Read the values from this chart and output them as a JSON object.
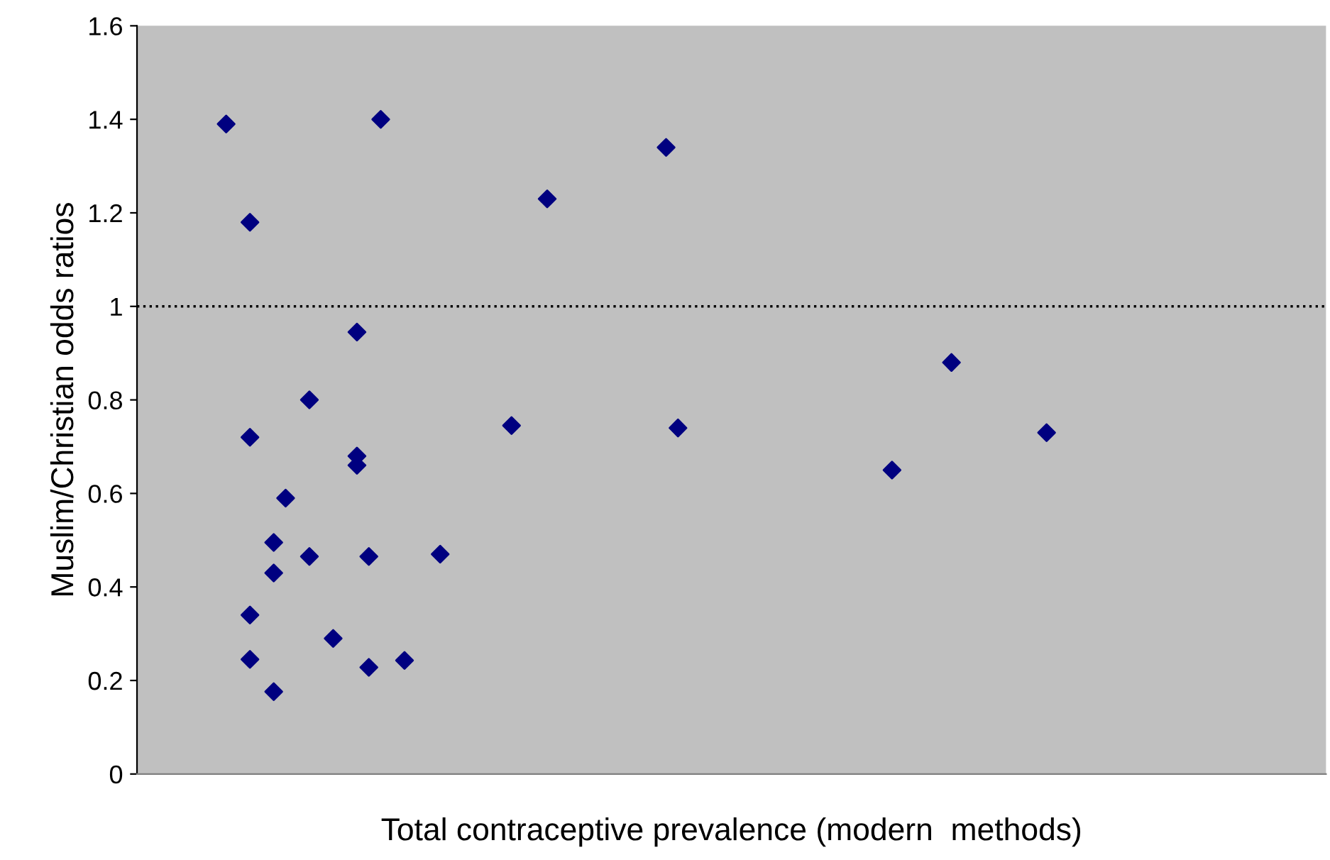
{
  "chart_data": {
    "type": "scatter",
    "xlabel": "Total contraceptive prevalence (modern  methods)",
    "ylabel": "Muslim/Christian odds ratios",
    "categories": [
      null,
      null,
      null,
      null,
      null,
      null,
      null,
      null,
      null,
      null,
      null,
      null,
      null,
      null,
      null,
      null,
      null,
      null,
      null,
      null,
      null,
      null,
      null,
      null,
      null,
      null,
      null,
      null,
      null,
      null,
      null,
      null,
      null,
      null,
      null,
      null,
      null,
      null,
      null,
      null,
      null,
      null,
      null,
      null,
      null,
      null,
      null,
      null,
      null,
      null,
      null,
      null,
      null,
      null,
      null,
      null,
      null,
      null,
      null,
      null,
      null,
      null,
      null,
      null,
      null,
      null,
      null,
      null,
      null,
      null,
      null,
      null,
      null,
      null,
      null,
      null,
      null,
      null,
      null,
      null,
      null,
      null,
      null,
      null,
      null,
      null,
      null,
      null,
      null,
      null,
      null,
      null,
      null,
      null,
      null,
      null,
      null,
      null,
      null,
      null
    ],
    "series": [
      {
        "color": "#000080",
        "values": [
          null,
          null,
          null,
          null,
          null,
          null,
          null,
          1.39,
          null,
          1.18,
          null,
          0.495,
          0.59,
          null,
          0.8,
          null,
          0.29,
          null,
          0.945,
          0.465,
          1.4,
          null,
          0.243,
          null,
          null,
          0.47,
          null,
          null,
          null,
          null,
          null,
          0.745,
          null,
          null,
          1.23,
          null,
          null,
          null,
          null,
          null,
          null,
          null,
          null,
          null,
          1.34,
          0.74,
          null,
          null,
          null,
          null,
          null,
          null,
          null,
          null,
          null,
          null,
          null,
          null,
          null,
          null,
          null,
          null,
          null,
          0.65,
          null,
          null,
          null,
          null,
          0.88,
          null,
          null,
          null,
          null,
          null,
          null,
          null,
          0.73,
          null,
          null,
          null,
          null,
          null,
          null,
          null,
          null,
          null,
          null,
          null,
          null,
          null,
          null,
          null,
          null,
          null,
          null,
          null,
          null,
          null,
          null,
          null
        ]
      },
      {
        "color": "#000080",
        "values": [
          null,
          null,
          null,
          null,
          null,
          null,
          null,
          null,
          null,
          0.72,
          null,
          0.43,
          null,
          null,
          0.465,
          null,
          null,
          null,
          0.68,
          0.228,
          null,
          null,
          null,
          null,
          null,
          null,
          null,
          null,
          null,
          null,
          null,
          null,
          null,
          null,
          null,
          null,
          null,
          null,
          null,
          null,
          null,
          null,
          null,
          null,
          null,
          null,
          null,
          null,
          null,
          null,
          null,
          null,
          null,
          null,
          null,
          null,
          null,
          null,
          null,
          null,
          null,
          null,
          null,
          null,
          null,
          null,
          null,
          null,
          null,
          null,
          null,
          null,
          null,
          null,
          null,
          null,
          null,
          null,
          null,
          null,
          null,
          null,
          null,
          null,
          null,
          null,
          null,
          null,
          null,
          null,
          null,
          null,
          null,
          null,
          null,
          null,
          null,
          null,
          null,
          null
        ]
      },
      {
        "color": "#000080",
        "values": [
          null,
          null,
          null,
          null,
          null,
          null,
          null,
          null,
          null,
          0.34,
          null,
          0.176,
          null,
          null,
          null,
          null,
          null,
          null,
          0.66,
          null,
          null,
          null,
          null,
          null,
          null,
          null,
          null,
          null,
          null,
          null,
          null,
          null,
          null,
          null,
          null,
          null,
          null,
          null,
          null,
          null,
          null,
          null,
          null,
          null,
          null,
          null,
          null,
          null,
          null,
          null,
          null,
          null,
          null,
          null,
          null,
          null,
          null,
          null,
          null,
          null,
          null,
          null,
          null,
          null,
          null,
          null,
          null,
          null,
          null,
          null,
          null,
          null,
          null,
          null,
          null,
          null,
          null,
          null,
          null,
          null,
          null,
          null,
          null,
          null,
          null,
          null,
          null,
          null,
          null,
          null,
          null,
          null,
          null,
          null,
          null,
          null,
          null,
          null,
          null,
          null
        ]
      },
      {
        "color": "#000080",
        "values": [
          null,
          null,
          null,
          null,
          null,
          null,
          null,
          null,
          null,
          0.245,
          null,
          null,
          null,
          null,
          null,
          null,
          null,
          null,
          null,
          null,
          null,
          null,
          null,
          null,
          null,
          null,
          null,
          null,
          null,
          null,
          null,
          null,
          null,
          null,
          null,
          null,
          null,
          null,
          null,
          null,
          null,
          null,
          null,
          null,
          null,
          null,
          null,
          null,
          null,
          null,
          null,
          null,
          null,
          null,
          null,
          null,
          null,
          null,
          null,
          null,
          null,
          null,
          null,
          null,
          null,
          null,
          null,
          null,
          null,
          null,
          null,
          null,
          null,
          null,
          null,
          null,
          null,
          null,
          null,
          null,
          null,
          null,
          null,
          null,
          null,
          null,
          null,
          null,
          null,
          null,
          null,
          null,
          null,
          null,
          null,
          null,
          null,
          null,
          null,
          null
        ]
      }
    ],
    "ylim": [
      0,
      1.6
    ],
    "yticks": [
      0,
      {
        "value": 0.2,
        "label": "0.2"
      },
      {
        "value": 0.4,
        "label": "0.4"
      },
      {
        "value": 0.6,
        "label": "0.6"
      },
      {
        "value": 0.8,
        "label": "0.8"
      },
      1,
      {
        "value": 1.2,
        "label": "1.2"
      },
      {
        "value": 1.4,
        "label": "1.4"
      },
      {
        "value": 1.6,
        "label": "1.6"
      }
    ],
    "tick_labels": "y",
    "marker": "diamond",
    "grid": false,
    "ref_lines": [
      {
        "axis": "y",
        "value": 1,
        "color": "#000000",
        "line_style": "dotted"
      }
    ]
  }
}
